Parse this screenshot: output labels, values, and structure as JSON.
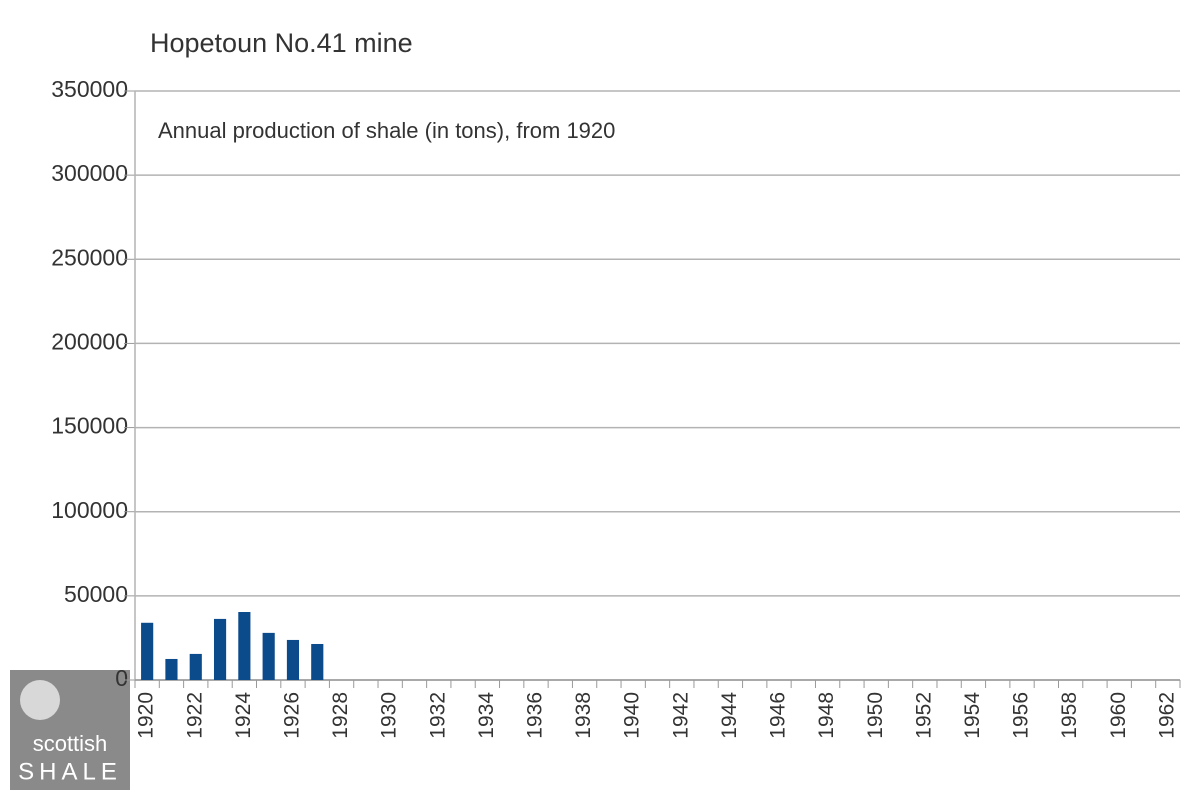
{
  "chart_data": {
    "type": "bar",
    "title": "Hopetoun No.41 mine",
    "subtitle": "Annual production of shale (in tons), from 1920",
    "categories": [
      "1920",
      null,
      "1922",
      null,
      "1924",
      null,
      "1926",
      null,
      "1928",
      null,
      "1930",
      null,
      "1932",
      null,
      "1934",
      null,
      "1936",
      null,
      "1938",
      null,
      "1940",
      null,
      "1942",
      null,
      "1944",
      null,
      "1946",
      null,
      "1948",
      null,
      "1950",
      null,
      "1952",
      null,
      "1954",
      null,
      "1956",
      null,
      "1958",
      null,
      "1960",
      null,
      "1962"
    ],
    "values": [
      34000,
      12500,
      15500,
      36300,
      40400,
      28000,
      23800,
      21400,
      null,
      null,
      null,
      null,
      null,
      null,
      null,
      null,
      null,
      null,
      null,
      null,
      null,
      null,
      null,
      null,
      null,
      null,
      null,
      null,
      null,
      null,
      null,
      null,
      null,
      null,
      null,
      null,
      null,
      null,
      null,
      null,
      null,
      null,
      null
    ],
    "color": "#0b4a8b",
    "ylim": [
      0,
      350000
    ],
    "yticks": [
      0,
      50000,
      100000,
      150000,
      200000,
      250000,
      300000,
      350000
    ],
    "grid": true
  },
  "watermark": {
    "line1": "scottish",
    "line2": "SHALE"
  }
}
